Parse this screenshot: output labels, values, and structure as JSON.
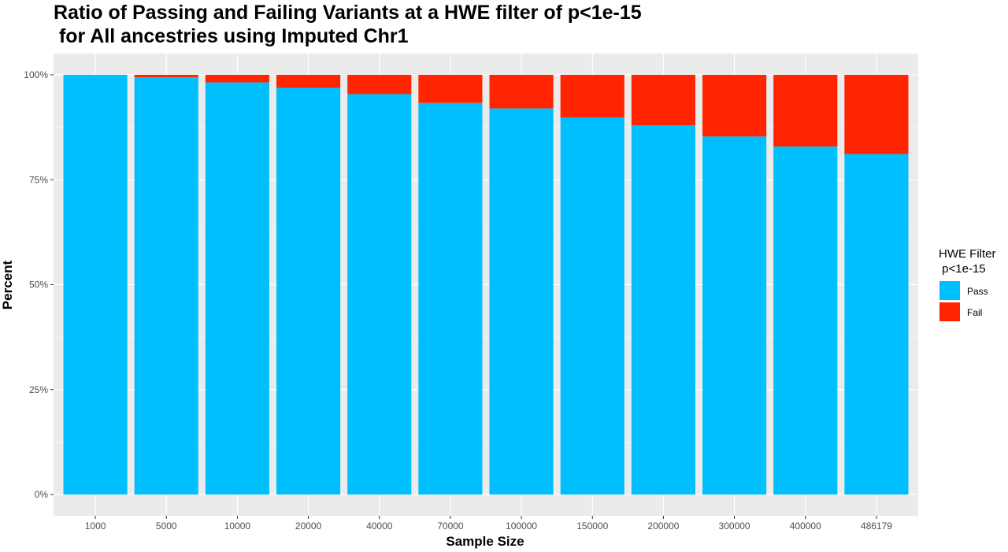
{
  "chart_data": {
    "type": "bar",
    "stacked": true,
    "title_line1": "Ratio of Passing and Failing Variants at a HWE filter of p<1e-15",
    "title_line2": " for All ancestries using Imputed Chr1",
    "xlabel": "Sample Size",
    "ylabel": "Percent",
    "ylim": [
      0,
      100
    ],
    "yticks": [
      "0%",
      "25%",
      "50%",
      "75%",
      "100%"
    ],
    "ytick_values": [
      0,
      25,
      50,
      75,
      100
    ],
    "categories": [
      "1000",
      "5000",
      "10000",
      "20000",
      "40000",
      "70000",
      "100000",
      "150000",
      "200000",
      "300000",
      "400000",
      "486179"
    ],
    "series": [
      {
        "name": "Pass",
        "color": "#00BFFF",
        "values": [
          100,
          99.4,
          98.2,
          96.9,
          95.4,
          93.3,
          92.0,
          89.8,
          88.0,
          85.3,
          82.9,
          81.1
        ]
      },
      {
        "name": "Fail",
        "color": "#FF2500",
        "values": [
          0,
          0.6,
          1.8,
          3.1,
          4.6,
          6.7,
          8.0,
          10.2,
          12.0,
          14.7,
          17.1,
          18.9
        ]
      }
    ],
    "legend": {
      "title_line1": "HWE Filter",
      "title_line2": " p<1e-15",
      "position": "right"
    },
    "grid": true,
    "panel_background": "#EBEBEB",
    "grid_color": "#FFFFFF"
  }
}
